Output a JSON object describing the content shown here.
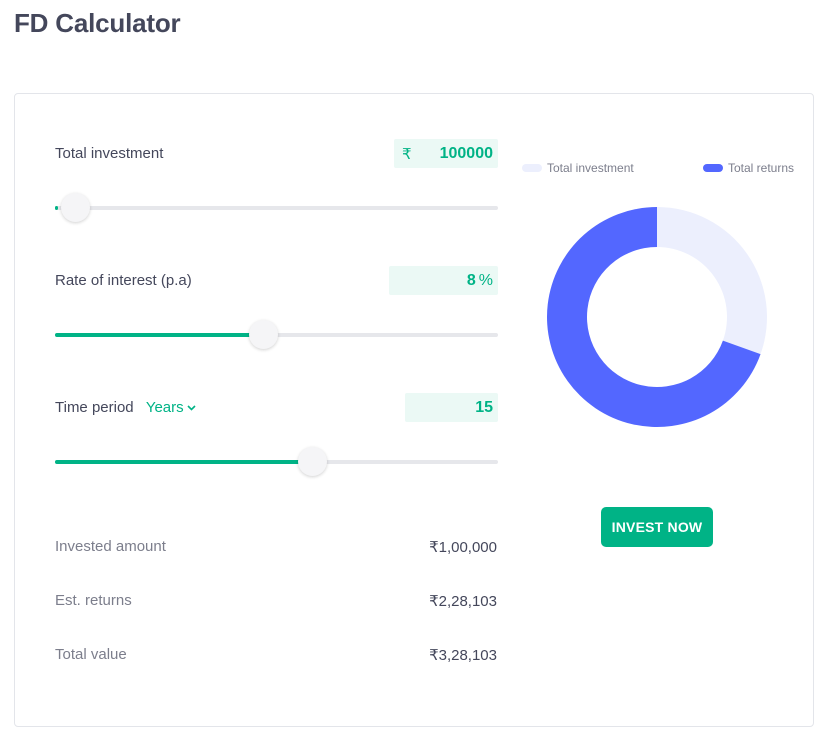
{
  "page": {
    "title": "FD Calculator"
  },
  "inputs": {
    "investment": {
      "label": "Total investment",
      "currency_symbol": "₹",
      "value": "100000",
      "slider_fraction": 0.005
    },
    "rate": {
      "label": "Rate of interest (p.a)",
      "value": "8",
      "unit": "%",
      "slider_fraction": 0.47
    },
    "period": {
      "label": "Time period",
      "unit_selected": "Years",
      "value": "15",
      "slider_fraction": 0.58
    }
  },
  "results": {
    "invested": {
      "label": "Invested amount",
      "value": "₹1,00,000"
    },
    "returns": {
      "label": "Est. returns",
      "value": "₹2,28,103"
    },
    "total": {
      "label": "Total value",
      "value": "₹3,28,103"
    }
  },
  "chart_data": {
    "type": "pie",
    "variant": "donut",
    "series": [
      {
        "name": "Total investment",
        "value": 100000,
        "color": "#eceffd"
      },
      {
        "name": "Total returns",
        "value": 228103,
        "color": "#5367ff"
      }
    ],
    "legend_position": "top"
  },
  "cta": {
    "label": "INVEST NOW"
  },
  "colors": {
    "accent": "#00b386",
    "accent_light": "#ebf9f5",
    "returns": "#5367ff",
    "investment": "#eceffd"
  }
}
